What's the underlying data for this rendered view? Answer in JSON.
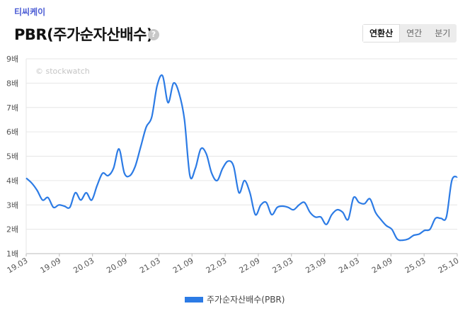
{
  "header": {
    "company": "티씨케이",
    "title": "PBR(주가순자산배수)",
    "help_icon": "?",
    "tabs": [
      "연환산",
      "연간",
      "분기"
    ]
  },
  "chart_data": {
    "type": "line",
    "title": "PBR(주가순자산배수)",
    "watermark": "© stockwatch",
    "ylim": [
      1,
      9
    ],
    "y_ticks": [
      1,
      2,
      3,
      4,
      5,
      6,
      7,
      8,
      9
    ],
    "y_tick_labels": [
      "1배",
      "2배",
      "3배",
      "4배",
      "5배",
      "6배",
      "7배",
      "8배",
      "9배"
    ],
    "x_ticks": [
      "19.03",
      "19.09",
      "20.03",
      "20.09",
      "21.03",
      "21.09",
      "22.03",
      "22.09",
      "23.03",
      "23.09",
      "24.03",
      "24.09",
      "25.03",
      "25.10"
    ],
    "xlim": [
      0,
      79
    ],
    "line_color": "#2c7be5",
    "series": [
      {
        "name": "주가순자산배수(PBR)",
        "x": [
          0,
          1,
          2,
          3,
          4,
          5,
          6,
          7,
          8,
          9,
          10,
          11,
          12,
          13,
          14,
          15,
          16,
          17,
          18,
          19,
          20,
          21,
          22,
          23,
          24,
          25,
          26,
          27,
          28,
          29,
          30,
          31,
          32,
          33,
          34,
          35,
          36,
          37,
          38,
          39,
          40,
          41,
          42,
          43,
          44,
          45,
          46,
          47,
          48,
          49,
          50,
          51,
          52,
          53,
          54,
          55,
          56,
          57,
          58,
          59,
          60,
          61,
          62,
          63,
          64,
          65,
          66,
          67,
          68,
          69,
          70,
          71,
          72,
          73,
          74,
          75,
          76,
          77,
          78,
          79
        ],
        "values": [
          4.1,
          3.9,
          3.6,
          3.2,
          3.3,
          2.9,
          3.0,
          2.95,
          2.9,
          3.5,
          3.2,
          3.5,
          3.2,
          3.8,
          4.3,
          4.2,
          4.5,
          5.3,
          4.3,
          4.2,
          4.6,
          5.4,
          6.2,
          6.6,
          7.9,
          8.3,
          7.2,
          8.0,
          7.6,
          6.5,
          4.2,
          4.5,
          5.3,
          5.1,
          4.3,
          4.0,
          4.5,
          4.8,
          4.6,
          3.5,
          4.0,
          3.5,
          2.6,
          3.0,
          3.1,
          2.6,
          2.9,
          2.95,
          2.9,
          2.8,
          3.0,
          3.1,
          2.7,
          2.5,
          2.5,
          2.2,
          2.6,
          2.8,
          2.7,
          2.4,
          3.3,
          3.1,
          3.05,
          3.25,
          2.7,
          2.4,
          2.15,
          2.0,
          1.6,
          1.55,
          1.6,
          1.75,
          1.8,
          1.95,
          2.0,
          2.45,
          2.45,
          2.5,
          4.0,
          4.15
        ]
      }
    ],
    "legend": "주가순자산배수(PBR)",
    "legend_position": "bottom-center"
  }
}
